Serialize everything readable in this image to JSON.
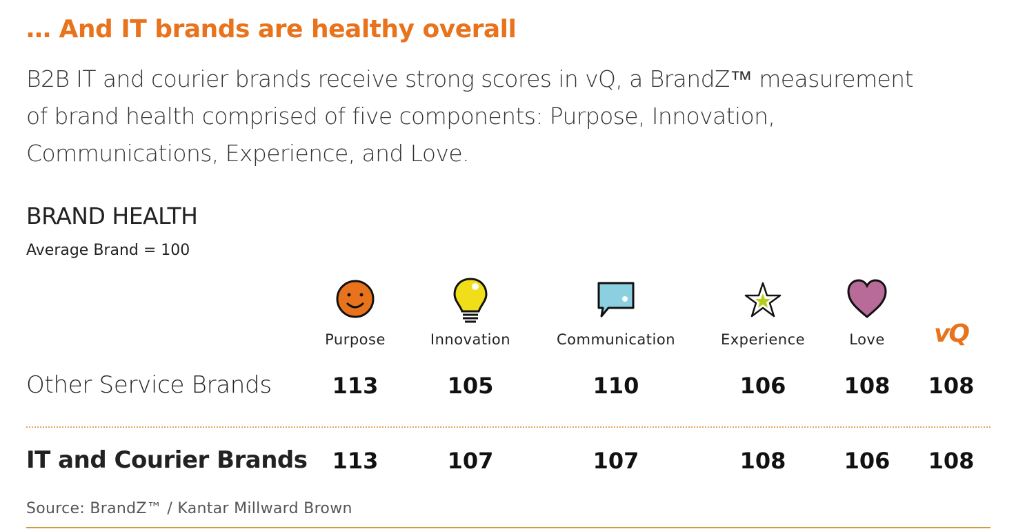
{
  "header": {
    "title": "… And IT brands are healthy overall",
    "intro": [
      "B2B IT and courier brands receive strong scores in vQ, a BrandZ™ measurement",
      "of brand health comprised of five components: Purpose, Innovation,",
      "Communications, Experience, and Love."
    ]
  },
  "table": {
    "title": "BRAND HEALTH",
    "subtitle": "Average Brand = 100",
    "columns": [
      "Purpose",
      "Innovation",
      "Communication",
      "Experience",
      "Love",
      "vQ"
    ],
    "rows": [
      {
        "label": "Other Service Brands",
        "values": [
          113,
          105,
          110,
          106,
          108,
          108
        ]
      },
      {
        "label": "IT and Courier Brands",
        "values": [
          113,
          107,
          107,
          108,
          106,
          108
        ]
      }
    ]
  },
  "footer": {
    "source": "Source: BrandZ™ / Kantar Millward Brown"
  }
}
